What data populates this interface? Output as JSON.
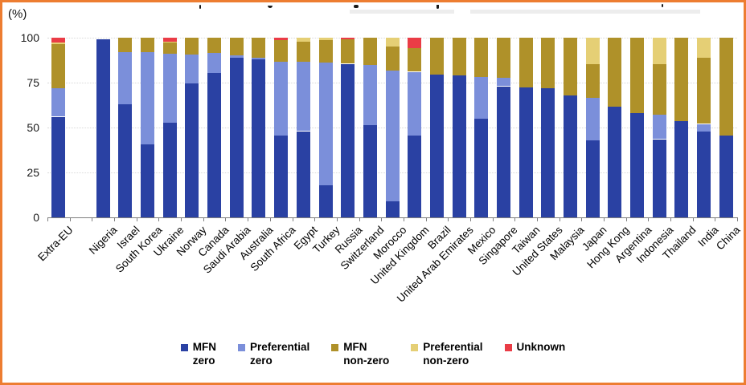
{
  "header": {
    "unit_label": "(%)"
  },
  "chart_data": {
    "type": "stacked-bar",
    "title": "",
    "ylabel": "(%)",
    "ylim": [
      0,
      100
    ],
    "yticks": [
      0,
      25,
      50,
      75,
      100
    ],
    "grid": "horizontal-dotted",
    "legend_position": "bottom",
    "gap_after_first": true,
    "categories": [
      "Extra-EU",
      "Nigeria",
      "Israel",
      "South Korea",
      "Ukraine",
      "Norway",
      "Canada",
      "Saudi Arabia",
      "Australia",
      "South Africa",
      "Egypt",
      "Turkey",
      "Russia",
      "Switzerland",
      "Morocco",
      "United Kingdom",
      "Brazil",
      "United Arab Emirates",
      "Mexico",
      "Singapore",
      "Taiwan",
      "United States",
      "Malaysia",
      "Japan",
      "Hong Kong",
      "Argentina",
      "Indonesia",
      "Thailand",
      "India",
      "China"
    ],
    "series": [
      {
        "name": "MFN zero",
        "color": "#2a41a3",
        "values": [
          56,
          99.3,
          63,
          40.5,
          52.5,
          74.5,
          80.5,
          89,
          88,
          45.5,
          48,
          18,
          85.5,
          51.5,
          9,
          45.5,
          79.5,
          79,
          55,
          73,
          72.5,
          72,
          68,
          43,
          61.5,
          58,
          43.5,
          53.5,
          48,
          45.5
        ]
      },
      {
        "name": "Preferential zero",
        "color": "#7b8fda",
        "values": [
          16,
          0,
          29,
          51.5,
          38.5,
          16,
          11,
          1,
          1,
          41,
          38.5,
          68,
          0,
          33.5,
          72.5,
          35.5,
          0,
          0,
          23,
          4.5,
          0,
          0,
          0,
          23.5,
          0,
          0,
          13.5,
          0,
          4,
          0
        ]
      },
      {
        "name": "MFN non-zero",
        "color": "#af9129",
        "values": [
          24.5,
          0,
          8,
          8,
          6.5,
          9.5,
          8.5,
          10,
          11,
          12,
          11.5,
          12.5,
          13.5,
          15,
          13.5,
          13,
          20.5,
          21,
          22,
          22.5,
          27.5,
          28,
          32,
          19,
          38.5,
          42,
          28.5,
          46.5,
          37,
          54.5
        ]
      },
      {
        "name": "Preferential non-zero",
        "color": "#e5cf75",
        "values": [
          1,
          0,
          0,
          0,
          0.5,
          0,
          0,
          0,
          0,
          0,
          2,
          1.5,
          0,
          0,
          5,
          0,
          0,
          0,
          0,
          0,
          0,
          0,
          0,
          14.5,
          0,
          0,
          14.5,
          0,
          11,
          0
        ]
      },
      {
        "name": "Unknown",
        "color": "#ea3c46",
        "values": [
          2.5,
          0,
          0,
          0,
          2,
          0,
          0,
          0,
          0,
          1.5,
          0,
          0,
          1,
          0,
          0,
          6,
          0,
          0,
          0,
          0,
          0,
          0,
          0,
          0,
          0,
          0,
          0,
          0,
          0,
          0
        ]
      }
    ],
    "legend_lines": [
      {
        "line1": "MFN",
        "line2": "zero"
      },
      {
        "line1": "Preferential",
        "line2": "zero"
      },
      {
        "line1": "MFN",
        "line2": "non-zero"
      },
      {
        "line1": "Preferential",
        "line2": "non-zero"
      },
      {
        "line1": "Unknown",
        "line2": ""
      }
    ]
  }
}
